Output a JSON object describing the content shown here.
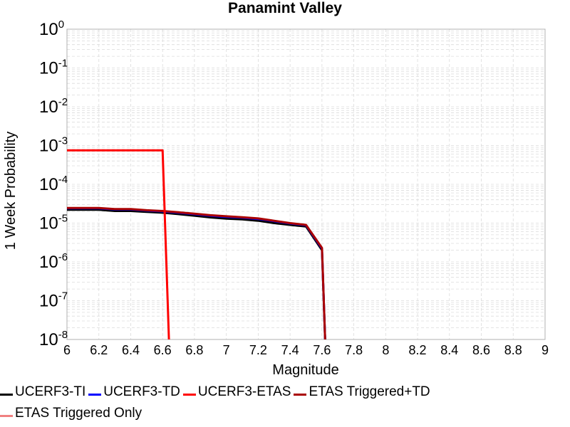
{
  "chart_data": {
    "type": "line",
    "title": "Panamint Valley",
    "xlabel": "Magnitude",
    "ylabel": "1 Week Probability",
    "xlim": [
      6,
      9
    ],
    "ylim": [
      1e-08,
      1
    ],
    "y_scale": "log",
    "grid": true,
    "legend_placement": "bottom",
    "x_ticks": [
      "6",
      "6.2",
      "6.4",
      "6.6",
      "6.8",
      "7",
      "7.2",
      "7.4",
      "7.6",
      "7.8",
      "8",
      "8.2",
      "8.4",
      "8.6",
      "8.8",
      "9"
    ],
    "y_tick_exponents": [
      "0",
      "-1",
      "-2",
      "-3",
      "-4",
      "-5",
      "-6",
      "-7",
      "-8"
    ],
    "y_tick_base": "10",
    "series": [
      {
        "name": "UCERF3-TI",
        "color": "#000000",
        "x": [
          6.0,
          6.2,
          6.3,
          6.4,
          6.5,
          6.6,
          6.7,
          6.8,
          6.9,
          7.0,
          7.1,
          7.2,
          7.3,
          7.4,
          7.5,
          7.6,
          7.62
        ],
        "y": [
          2.2e-05,
          2.2e-05,
          2.05e-05,
          2.05e-05,
          1.95e-05,
          1.85e-05,
          1.7e-05,
          1.55e-05,
          1.4e-05,
          1.3e-05,
          1.25e-05,
          1.15e-05,
          1e-05,
          9e-06,
          8.2e-06,
          2e-06,
          1e-08
        ]
      },
      {
        "name": "UCERF3-TD",
        "color": "#0000ff",
        "x": [
          6.0,
          6.2,
          6.3,
          6.4,
          6.5,
          6.6,
          6.7,
          6.8,
          6.9,
          7.0,
          7.1,
          7.2,
          7.3,
          7.4,
          7.5,
          7.6,
          7.62
        ],
        "y": [
          2.4e-05,
          2.4e-05,
          2.25e-05,
          2.25e-05,
          2.1e-05,
          2e-05,
          1.85e-05,
          1.7e-05,
          1.55e-05,
          1.45e-05,
          1.38e-05,
          1.28e-05,
          1.12e-05,
          9.8e-06,
          8.8e-06,
          2.2e-06,
          1e-08
        ]
      },
      {
        "name": "UCERF3-ETAS",
        "color": "#ff0000",
        "x": [
          6.0,
          6.6,
          6.64
        ],
        "y": [
          0.00075,
          0.00075,
          1e-08
        ]
      },
      {
        "name": "ETAS Triggered+TD",
        "color": "#aa0000",
        "x": [
          6.0,
          6.2,
          6.3,
          6.4,
          6.5,
          6.6,
          6.7,
          6.8,
          6.9,
          7.0,
          7.1,
          7.2,
          7.3,
          7.4,
          7.5,
          7.6,
          7.62
        ],
        "y": [
          2.45e-05,
          2.45e-05,
          2.3e-05,
          2.3e-05,
          2.15e-05,
          2.05e-05,
          1.9e-05,
          1.75e-05,
          1.6e-05,
          1.5e-05,
          1.42e-05,
          1.32e-05,
          1.15e-05,
          1e-05,
          9e-06,
          2.3e-06,
          1e-08
        ]
      },
      {
        "name": "ETAS Triggered Only",
        "color": "#f08080",
        "x": [],
        "y": []
      }
    ]
  }
}
